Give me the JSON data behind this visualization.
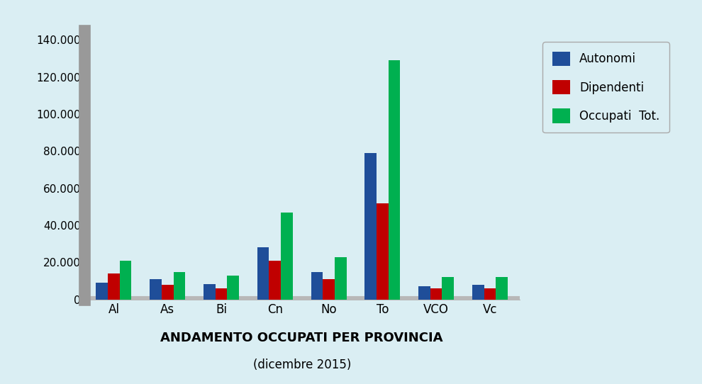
{
  "categories": [
    "Al",
    "As",
    "Bi",
    "Cn",
    "No",
    "To",
    "VCO",
    "Vc"
  ],
  "autonomi": [
    9000,
    11000,
    8500,
    28000,
    15000,
    79000,
    7000,
    8000
  ],
  "dipendenti": [
    14000,
    8000,
    6000,
    21000,
    11000,
    52000,
    6000,
    6000
  ],
  "occupati_tot": [
    21000,
    15000,
    13000,
    47000,
    23000,
    129000,
    12000,
    12000
  ],
  "color_autonomi": "#1f4e99",
  "color_dipendenti": "#c00000",
  "color_occupati": "#00b050",
  "background_color": "#daeef3",
  "title_line1": "ANDAMENTO OCCUPATI PER PROVINCIA",
  "title_line2": "(dicembre 2015)",
  "legend_labels": [
    "Autonomi",
    "Dipendenti",
    "Occupati  Tot."
  ],
  "ylim": [
    0,
    145000
  ],
  "yticks": [
    0,
    20000,
    40000,
    60000,
    80000,
    100000,
    120000,
    140000
  ],
  "ytick_labels": [
    "0",
    "20.000",
    "40.000",
    "60.000",
    "80.000",
    "100.000",
    "120.000",
    "140.000"
  ],
  "bar_width": 0.22,
  "spine_color": "#999999",
  "floor_color": "#b8b8b8"
}
